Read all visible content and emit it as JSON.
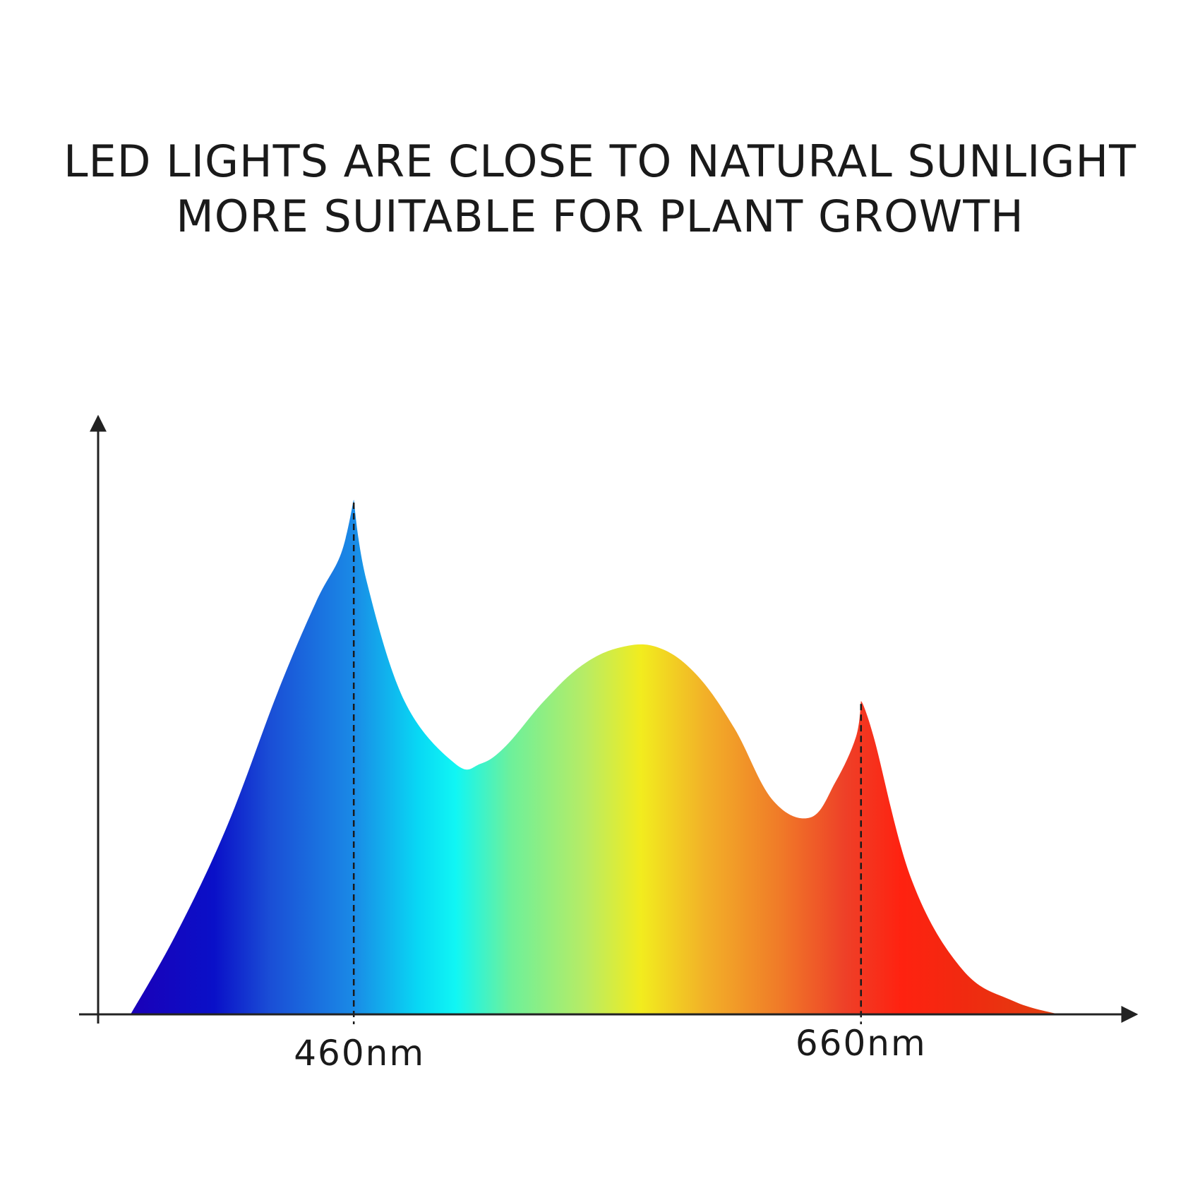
{
  "title": {
    "line1": "LED LIGHTS ARE CLOSE TO NATURAL SUNLIGHT",
    "line2": "MORE SUITABLE FOR PLANT GROWTH"
  },
  "chart_data": {
    "type": "area",
    "xlabel": "",
    "ylabel": "",
    "xlim": [
      360,
      760
    ],
    "ylim": [
      0,
      1.15
    ],
    "grid": false,
    "legend": "none",
    "fill": "visible-spectrum-gradient",
    "series": [
      {
        "x": [
          372,
          390,
          410,
          430,
          445,
          455,
          460,
          465,
          480,
          500,
          510,
          520,
          535,
          550,
          565,
          580,
          595,
          610,
          625,
          640,
          650,
          658,
          660,
          665,
          680,
          700,
          720,
          738
        ],
        "values": [
          0,
          0.18,
          0.42,
          0.72,
          0.92,
          1.03,
          1.15,
          0.97,
          0.7,
          0.56,
          0.56,
          0.6,
          0.7,
          0.78,
          0.82,
          0.82,
          0.76,
          0.64,
          0.48,
          0.44,
          0.52,
          0.62,
          0.7,
          0.62,
          0.3,
          0.1,
          0.03,
          0
        ]
      }
    ],
    "markers": [
      {
        "x": 460,
        "label": "460nm"
      },
      {
        "x": 660,
        "label": "660nm"
      }
    ]
  }
}
